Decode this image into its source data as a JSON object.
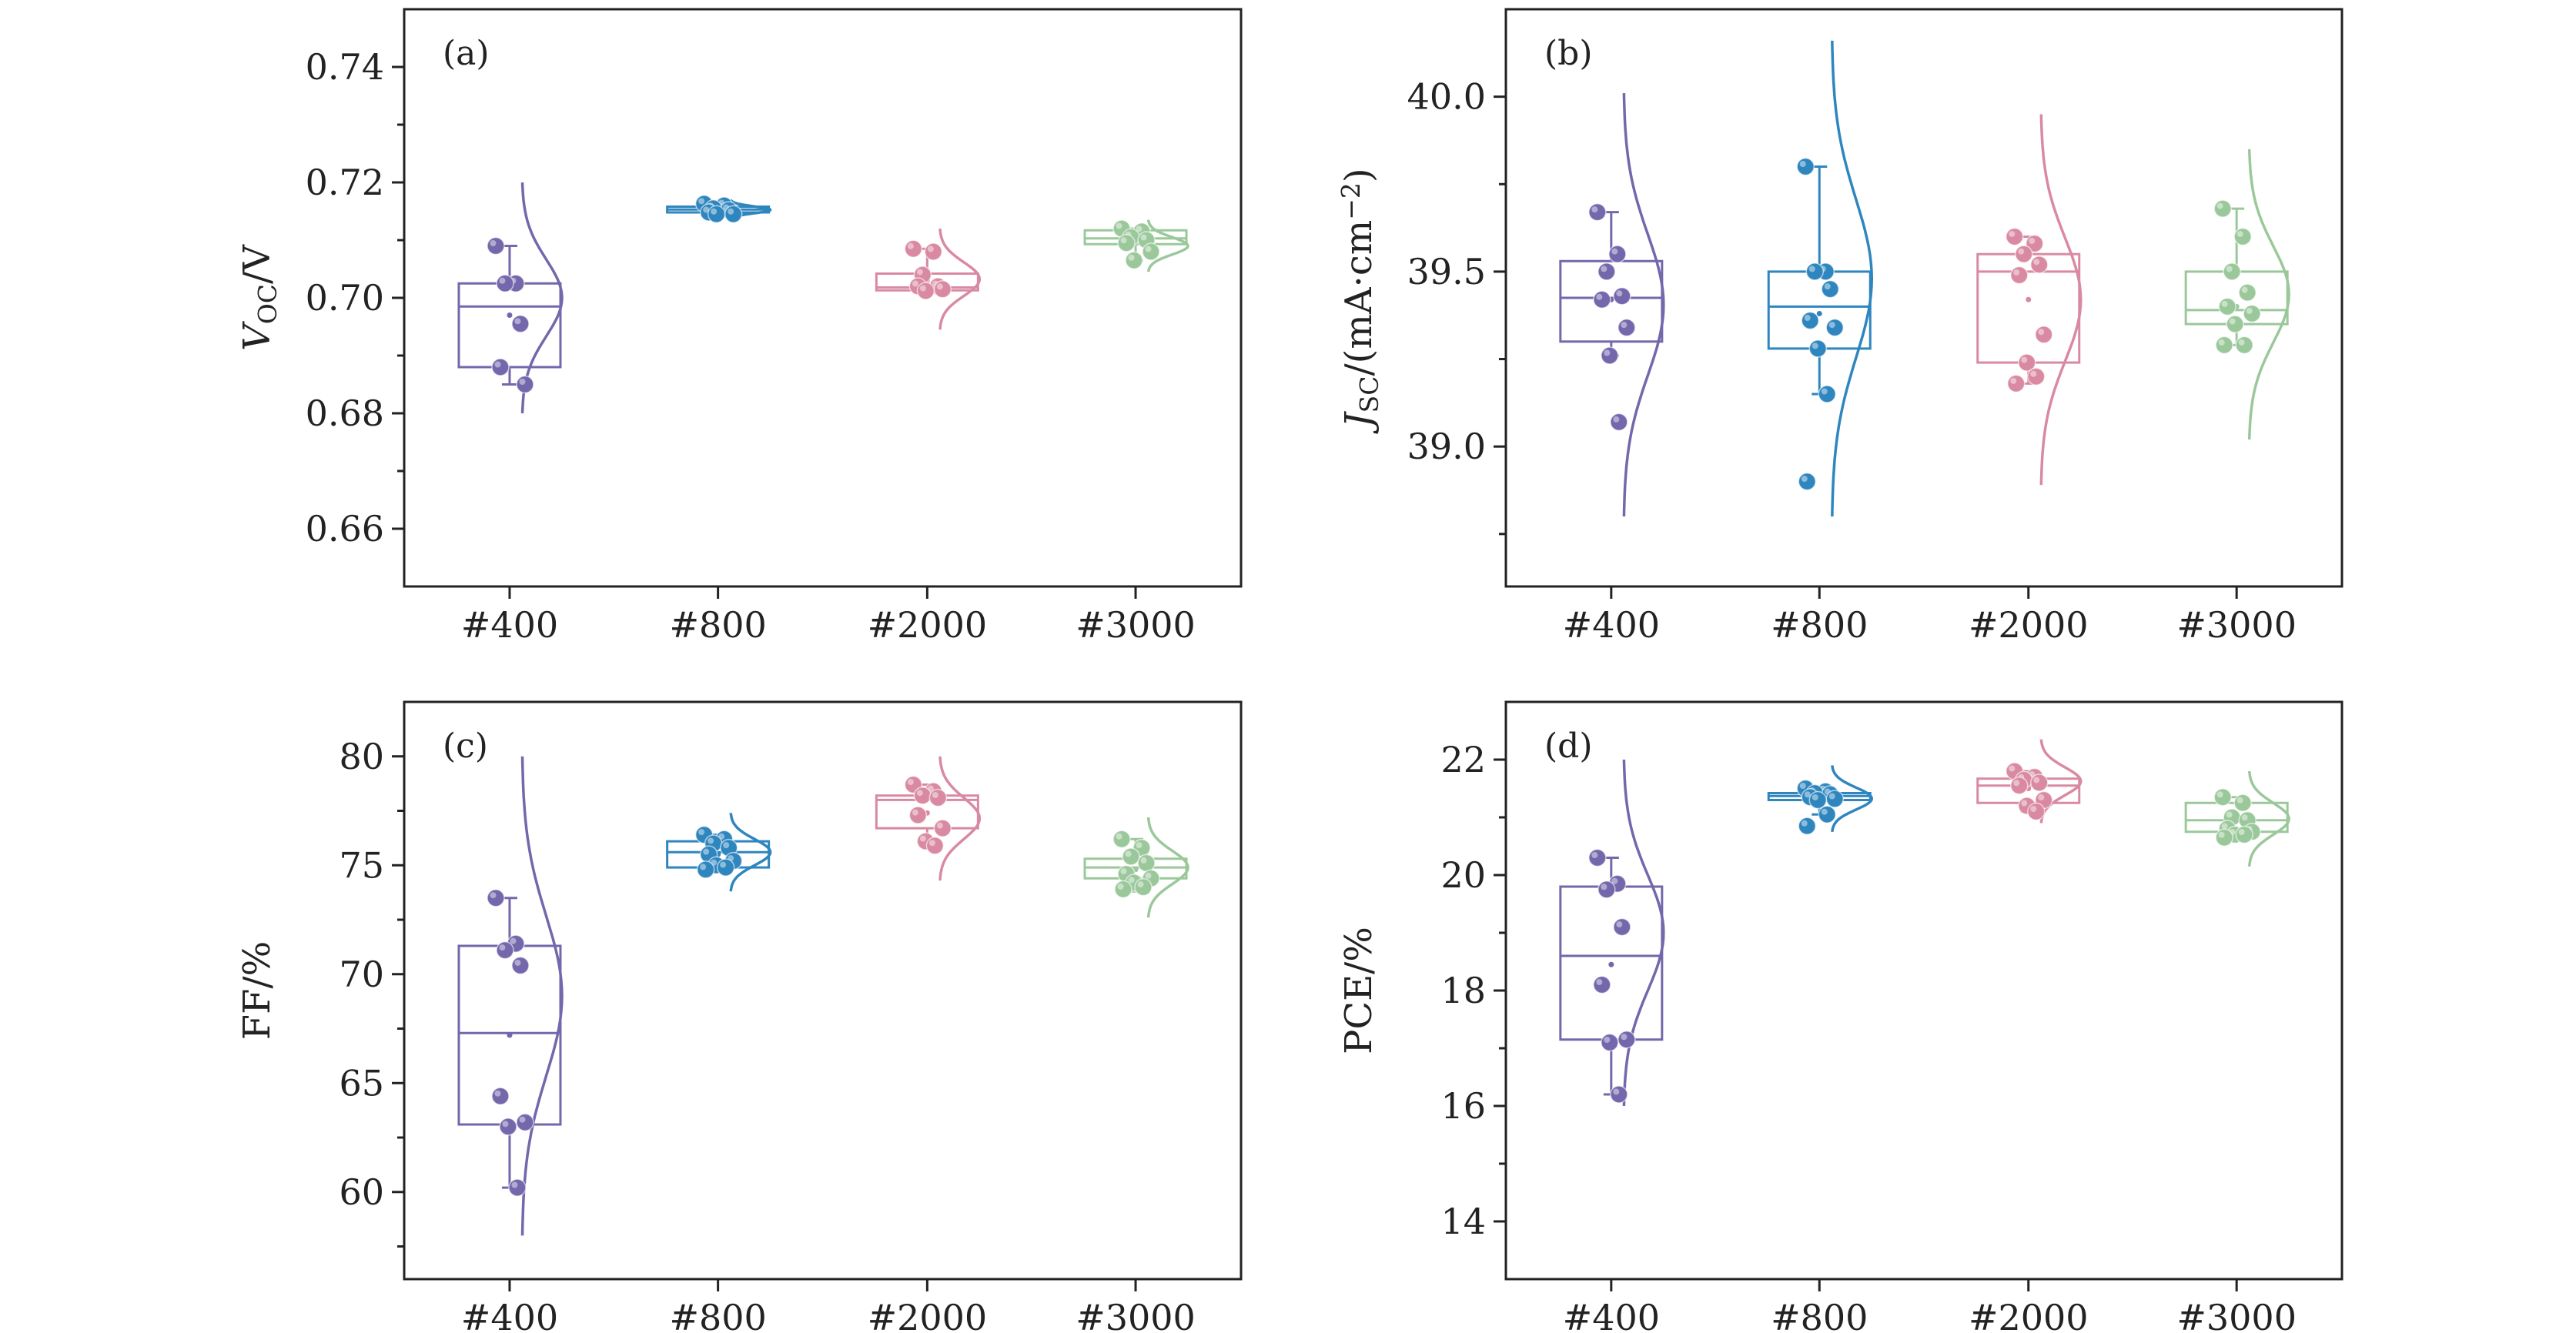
{
  "chart_data": [
    {
      "type": "box",
      "panel": "(a)",
      "ylabel_main": "V",
      "ylabel_sub": "OC",
      "ylabel_suffix": "/V",
      "categories": [
        "#400",
        "#800",
        "#2000",
        "#3000"
      ],
      "ylim": [
        0.65,
        0.75
      ],
      "yticks": [
        0.66,
        0.68,
        0.7,
        0.72,
        0.74
      ],
      "ytick_labels": [
        "0.66",
        "0.68",
        "0.70",
        "0.72",
        "0.74"
      ],
      "series": [
        {
          "name": "#400",
          "color": "#7467ab",
          "q1": 0.688,
          "median": 0.6985,
          "q3": 0.7025,
          "whisker_low": 0.685,
          "whisker_high": 0.709,
          "mean": 0.697,
          "points": [
            0.709,
            0.7025,
            0.7025,
            0.6955,
            0.688,
            0.685
          ],
          "curve": [
            0.68,
            0.72
          ]
        },
        {
          "name": "#800",
          "color": "#2f86bf",
          "q1": 0.7148,
          "median": 0.7153,
          "q3": 0.7158,
          "whisker_low": 0.7143,
          "whisker_high": 0.7163,
          "mean": 0.7153,
          "points": [
            0.7163,
            0.716,
            0.7155,
            0.7152,
            0.7148,
            0.7145,
            0.7145
          ],
          "curve": [
            0.7135,
            0.717
          ]
        },
        {
          "name": "#2000",
          "color": "#d98aa2",
          "q1": 0.7013,
          "median": 0.7018,
          "q3": 0.7042,
          "whisker_low": 0.701,
          "whisker_high": 0.7085,
          "mean": 0.703,
          "points": [
            0.7085,
            0.708,
            0.704,
            0.702,
            0.702,
            0.7015,
            0.7012
          ],
          "curve": [
            0.6945,
            0.712
          ]
        },
        {
          "name": "#3000",
          "color": "#9bc89b",
          "q1": 0.7093,
          "median": 0.7103,
          "q3": 0.7117,
          "whisker_low": 0.7065,
          "whisker_high": 0.712,
          "mean": 0.71,
          "points": [
            0.712,
            0.7115,
            0.7105,
            0.71,
            0.7095,
            0.708,
            0.7065
          ],
          "curve": [
            0.7045,
            0.7135
          ]
        }
      ]
    },
    {
      "type": "box",
      "panel": "(b)",
      "ylabel_main": "J",
      "ylabel_sub": "SC",
      "ylabel_suffix": "/(mA·cm",
      "ylabel_sup": "−2",
      "ylabel_end": ")",
      "categories": [
        "#400",
        "#800",
        "#2000",
        "#3000"
      ],
      "ylim": [
        38.6,
        40.25
      ],
      "yticks": [
        39.0,
        39.5,
        40.0
      ],
      "ytick_labels": [
        "39.0",
        "39.5",
        "40.0"
      ],
      "series": [
        {
          "name": "#400",
          "color": "#7467ab",
          "q1": 39.3,
          "median": 39.425,
          "q3": 39.53,
          "whisker_low": 39.26,
          "whisker_high": 39.67,
          "mean": 39.42,
          "points": [
            39.67,
            39.55,
            39.5,
            39.43,
            39.42,
            39.34,
            39.26,
            39.07
          ],
          "curve": [
            38.8,
            40.01
          ]
        },
        {
          "name": "#800",
          "color": "#2f86bf",
          "q1": 39.28,
          "median": 39.4,
          "q3": 39.5,
          "whisker_low": 39.15,
          "whisker_high": 39.8,
          "mean": 39.38,
          "points": [
            39.8,
            39.5,
            39.5,
            39.45,
            39.36,
            39.34,
            39.28,
            39.15,
            38.9
          ],
          "curve": [
            38.8,
            40.16
          ]
        },
        {
          "name": "#2000",
          "color": "#d98aa2",
          "q1": 39.24,
          "median": 39.5,
          "q3": 39.55,
          "whisker_low": 39.18,
          "whisker_high": 39.6,
          "mean": 39.42,
          "points": [
            39.6,
            39.58,
            39.55,
            39.52,
            39.49,
            39.32,
            39.24,
            39.2,
            39.18
          ],
          "curve": [
            38.89,
            39.95
          ]
        },
        {
          "name": "#3000",
          "color": "#9bc89b",
          "q1": 39.35,
          "median": 39.39,
          "q3": 39.5,
          "whisker_low": 39.29,
          "whisker_high": 39.68,
          "mean": 39.4,
          "points": [
            39.68,
            39.6,
            39.5,
            39.44,
            39.4,
            39.38,
            39.35,
            39.29,
            39.29
          ],
          "curve": [
            39.02,
            39.85
          ]
        }
      ]
    },
    {
      "type": "box",
      "panel": "(c)",
      "ylabel_main": "FF/%",
      "categories": [
        "#400",
        "#800",
        "#2000",
        "#3000"
      ],
      "ylim": [
        56,
        82.5
      ],
      "yticks": [
        60,
        65,
        70,
        75,
        80
      ],
      "ytick_labels": [
        "60",
        "65",
        "70",
        "75",
        "80"
      ],
      "series": [
        {
          "name": "#400",
          "color": "#7467ab",
          "q1": 63.1,
          "median": 67.3,
          "q3": 71.3,
          "whisker_low": 60.2,
          "whisker_high": 73.5,
          "mean": 67.2,
          "points": [
            73.5,
            71.4,
            71.1,
            70.4,
            64.4,
            63.2,
            63.0,
            60.2
          ],
          "curve": [
            58.0,
            80.0
          ]
        },
        {
          "name": "#800",
          "color": "#2f86bf",
          "q1": 74.9,
          "median": 75.6,
          "q3": 76.1,
          "whisker_low": 74.8,
          "whisker_high": 76.4,
          "mean": 75.5,
          "points": [
            76.4,
            76.2,
            76.0,
            75.8,
            75.5,
            75.2,
            75.0,
            74.9,
            74.8
          ],
          "curve": [
            73.8,
            77.4
          ]
        },
        {
          "name": "#2000",
          "color": "#d98aa2",
          "q1": 76.7,
          "median": 78.0,
          "q3": 78.2,
          "whisker_low": 75.9,
          "whisker_high": 78.7,
          "mean": 77.4,
          "points": [
            78.7,
            78.4,
            78.2,
            78.1,
            77.3,
            76.7,
            76.1,
            75.9
          ],
          "curve": [
            74.3,
            80.0
          ]
        },
        {
          "name": "#3000",
          "color": "#9bc89b",
          "q1": 74.4,
          "median": 74.9,
          "q3": 75.3,
          "whisker_low": 73.8,
          "whisker_high": 76.2,
          "mean": 74.8,
          "points": [
            76.2,
            75.8,
            75.4,
            75.1,
            74.6,
            74.4,
            74.2,
            74.0,
            73.9
          ],
          "curve": [
            72.6,
            77.2
          ]
        }
      ]
    },
    {
      "type": "box",
      "panel": "(d)",
      "ylabel_main": "PCE/%",
      "categories": [
        "#400",
        "#800",
        "#2000",
        "#3000"
      ],
      "ylim": [
        13,
        23
      ],
      "yticks": [
        14,
        16,
        18,
        20,
        22
      ],
      "ytick_labels": [
        "14",
        "16",
        "18",
        "20",
        "22"
      ],
      "series": [
        {
          "name": "#400",
          "color": "#7467ab",
          "q1": 17.15,
          "median": 18.6,
          "q3": 19.8,
          "whisker_low": 16.2,
          "whisker_high": 20.3,
          "mean": 18.45,
          "points": [
            20.3,
            19.85,
            19.75,
            19.1,
            18.1,
            17.15,
            17.1,
            16.2
          ],
          "curve": [
            16.0,
            22.0
          ]
        },
        {
          "name": "#800",
          "color": "#2f86bf",
          "q1": 21.3,
          "median": 21.37,
          "q3": 21.42,
          "whisker_low": 21.05,
          "whisker_high": 21.5,
          "mean": 21.35,
          "points": [
            21.5,
            21.45,
            21.42,
            21.4,
            21.35,
            21.32,
            21.3,
            21.05,
            20.85
          ],
          "curve": [
            20.75,
            21.9
          ]
        },
        {
          "name": "#2000",
          "color": "#d98aa2",
          "q1": 21.25,
          "median": 21.55,
          "q3": 21.67,
          "whisker_low": 21.1,
          "whisker_high": 21.8,
          "mean": 21.5,
          "points": [
            21.8,
            21.7,
            21.65,
            21.6,
            21.55,
            21.3,
            21.2,
            21.1
          ],
          "curve": [
            20.9,
            22.35
          ]
        },
        {
          "name": "#3000",
          "color": "#9bc89b",
          "q1": 20.75,
          "median": 20.95,
          "q3": 21.25,
          "whisker_low": 20.7,
          "whisker_high": 21.35,
          "mean": 20.95,
          "points": [
            21.35,
            21.25,
            21.0,
            20.95,
            20.8,
            20.75,
            20.7,
            20.7,
            20.65
          ],
          "curve": [
            20.15,
            21.8
          ]
        }
      ]
    }
  ]
}
